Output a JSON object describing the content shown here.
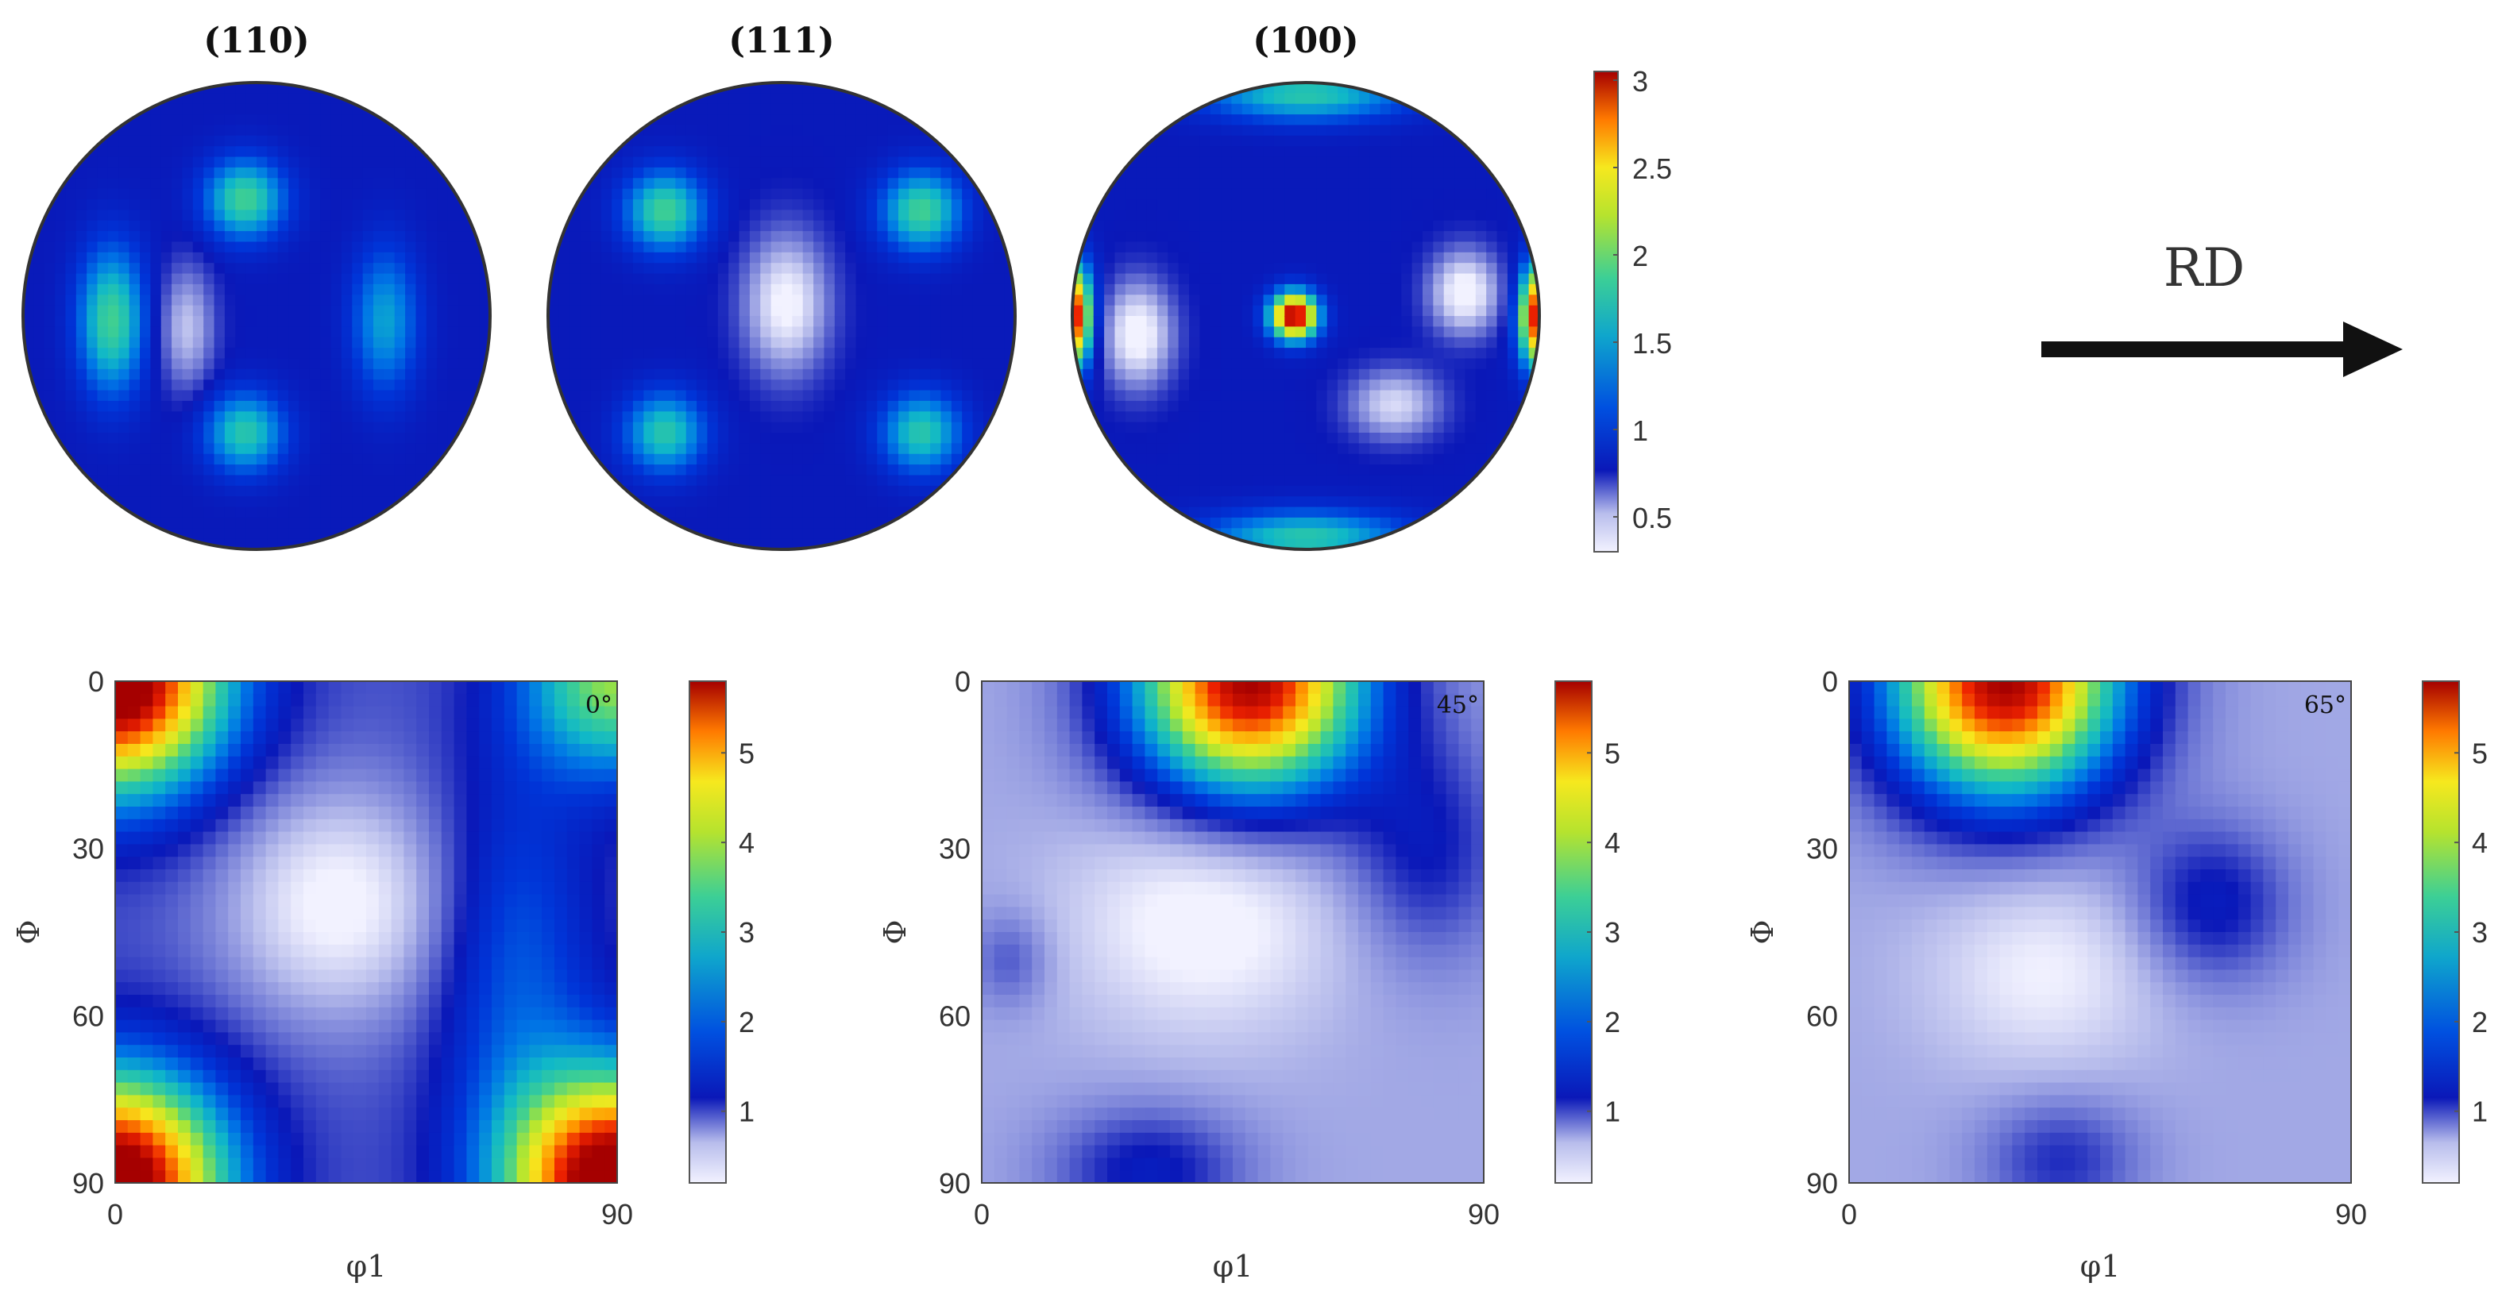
{
  "figure": {
    "rd_label": "RD",
    "colors": {
      "colormap": [
        "#f2f2ff",
        "#b8bdec",
        "#6a74d4",
        "#0a18b8",
        "#0035d8",
        "#0077e6",
        "#10b8c8",
        "#40d090",
        "#b0e630",
        "#f6e81e",
        "#ff9a00",
        "#ee2200",
        "#a50000"
      ]
    }
  },
  "chart_data": [
    {
      "type": "heatmap",
      "subtype": "pole-figure",
      "title": "(110)",
      "field": [
        {
          "x": -0.05,
          "y": -0.5,
          "amp": 0.9,
          "sx": 0.12,
          "sy": 0.12
        },
        {
          "x": -0.05,
          "y": 0.5,
          "amp": 0.8,
          "sx": 0.12,
          "sy": 0.12
        },
        {
          "x": -0.62,
          "y": 0.02,
          "amp": 0.9,
          "sx": 0.1,
          "sy": 0.22
        },
        {
          "x": 0.55,
          "y": 0.02,
          "amp": 0.6,
          "sx": 0.1,
          "sy": 0.22
        },
        {
          "x": -0.3,
          "y": 0.05,
          "amp": -0.5,
          "sx": 0.08,
          "sy": 0.18
        }
      ],
      "base": 1.0
    },
    {
      "type": "heatmap",
      "subtype": "pole-figure",
      "title": "(111)",
      "field": [
        {
          "x": -0.5,
          "y": -0.45,
          "amp": 0.9,
          "sx": 0.12,
          "sy": 0.12
        },
        {
          "x": 0.6,
          "y": -0.45,
          "amp": 0.9,
          "sx": 0.12,
          "sy": 0.12
        },
        {
          "x": -0.5,
          "y": 0.5,
          "amp": 0.8,
          "sx": 0.12,
          "sy": 0.12
        },
        {
          "x": 0.6,
          "y": 0.5,
          "amp": 0.8,
          "sx": 0.12,
          "sy": 0.12
        },
        {
          "x": 0.02,
          "y": -0.05,
          "amp": -0.75,
          "sx": 0.12,
          "sy": 0.2
        }
      ],
      "base": 1.0
    },
    {
      "type": "heatmap",
      "subtype": "pole-figure",
      "title": "(100)",
      "field": [
        {
          "x": -0.05,
          "y": 0.0,
          "amp": 2.1,
          "sx": 0.07,
          "sy": 0.07
        },
        {
          "x": -1.0,
          "y": 0.0,
          "amp": 2.0,
          "sx": 0.06,
          "sy": 0.15
        },
        {
          "x": 1.0,
          "y": 0.0,
          "amp": 2.0,
          "sx": 0.06,
          "sy": 0.15
        },
        {
          "x": 0.0,
          "y": -0.95,
          "amp": 0.8,
          "sx": 0.3,
          "sy": 0.08
        },
        {
          "x": 0.0,
          "y": 0.95,
          "amp": 0.8,
          "sx": 0.3,
          "sy": 0.08
        },
        {
          "x": 0.68,
          "y": -0.1,
          "amp": -0.8,
          "sx": 0.1,
          "sy": 0.12
        },
        {
          "x": -0.72,
          "y": 0.08,
          "amp": -0.8,
          "sx": 0.1,
          "sy": 0.15
        },
        {
          "x": 0.38,
          "y": 0.38,
          "amp": -0.6,
          "sx": 0.13,
          "sy": 0.1
        }
      ],
      "base": 1.0
    },
    {
      "type": "heatmap",
      "subtype": "colorbar",
      "ticks": [
        3,
        2.5,
        2,
        1.5,
        1,
        0.5
      ],
      "range": [
        0.3,
        3.05
      ]
    },
    {
      "type": "heatmap",
      "subtype": "odf-section",
      "section_label": "0°",
      "xlabel": "φ1",
      "ylabel": "Φ",
      "xticks": [
        0,
        90
      ],
      "yticks": [
        0,
        30,
        60,
        90
      ],
      "xlim": [
        0,
        90
      ],
      "ylim": [
        0,
        90
      ],
      "colorbar_ticks": [
        5,
        4,
        3,
        2,
        1
      ],
      "colorbar_range": [
        0.2,
        5.8
      ],
      "field": [
        {
          "x": 0,
          "y": 0,
          "amp": 5.0,
          "sx": 14,
          "sy": 14
        },
        {
          "x": 90,
          "y": 90,
          "amp": 5.0,
          "sx": 14,
          "sy": 14
        },
        {
          "x": 0,
          "y": 90,
          "amp": 5.0,
          "sx": 14,
          "sy": 14
        },
        {
          "x": 90,
          "y": 0,
          "amp": 2.5,
          "sx": 12,
          "sy": 12
        },
        {
          "x": 40,
          "y": 40,
          "amp": -1.2,
          "sx": 14,
          "sy": 14
        },
        {
          "x": 72,
          "y": 50,
          "amp": 1.0,
          "sx": 10,
          "sy": 25
        }
      ],
      "base": 1.3
    },
    {
      "type": "heatmap",
      "subtype": "odf-section",
      "section_label": "45°",
      "xlabel": "φ1",
      "ylabel": "Φ",
      "xticks": [
        0,
        90
      ],
      "yticks": [
        0,
        30,
        60,
        90
      ],
      "xlim": [
        0,
        90
      ],
      "ylim": [
        0,
        90
      ],
      "colorbar_ticks": [
        5,
        4,
        3,
        2,
        1
      ],
      "colorbar_range": [
        0.2,
        5.8
      ],
      "field": [
        {
          "x": 48,
          "y": 0,
          "amp": 5.0,
          "sx": 15,
          "sy": 15
        },
        {
          "x": 40,
          "y": 42,
          "amp": -0.8,
          "sx": 16,
          "sy": 14
        },
        {
          "x": 80,
          "y": 30,
          "amp": 0.8,
          "sx": 10,
          "sy": 14
        },
        {
          "x": 30,
          "y": 88,
          "amp": 0.9,
          "sx": 12,
          "sy": 8
        },
        {
          "x": 5,
          "y": 50,
          "amp": 0.5,
          "sx": 5,
          "sy": 6
        }
      ],
      "base": 0.8
    },
    {
      "type": "heatmap",
      "subtype": "odf-section",
      "section_label": "65°",
      "xlabel": "φ1",
      "ylabel": "Φ",
      "xticks": [
        0,
        90
      ],
      "yticks": [
        0,
        30,
        60,
        90
      ],
      "xlim": [
        0,
        90
      ],
      "ylim": [
        0,
        90
      ],
      "colorbar_ticks": [
        5,
        4,
        3,
        2,
        1
      ],
      "colorbar_range": [
        0.2,
        5.8
      ],
      "field": [
        {
          "x": 28,
          "y": 0,
          "amp": 5.0,
          "sx": 15,
          "sy": 15
        },
        {
          "x": 65,
          "y": 40,
          "amp": 0.9,
          "sx": 10,
          "sy": 10
        },
        {
          "x": 35,
          "y": 52,
          "amp": -0.6,
          "sx": 14,
          "sy": 12
        },
        {
          "x": 38,
          "y": 86,
          "amp": 0.7,
          "sx": 10,
          "sy": 8
        }
      ],
      "base": 0.8
    }
  ]
}
